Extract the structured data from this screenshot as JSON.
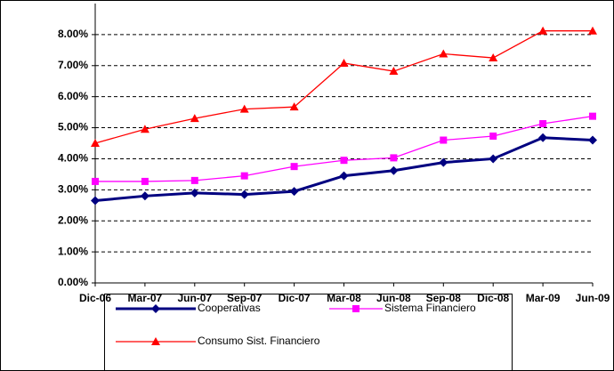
{
  "chart_data": {
    "type": "line",
    "categories": [
      "Dic-06",
      "Mar-07",
      "Jun-07",
      "Sep-07",
      "Dic-07",
      "Mar-08",
      "Jun-08",
      "Sep-08",
      "Dic-08",
      "Mar-09",
      "Jun-09"
    ],
    "series": [
      {
        "name": "Cooperativas",
        "color": "#000080",
        "marker": "diamond",
        "values": [
          2.65,
          2.8,
          2.9,
          2.85,
          2.95,
          3.45,
          3.62,
          3.88,
          4.0,
          4.68,
          4.6
        ]
      },
      {
        "name": "Sistema Financiero",
        "color": "#ff00ff",
        "marker": "square",
        "values": [
          3.27,
          3.27,
          3.3,
          3.45,
          3.75,
          3.95,
          4.03,
          4.6,
          4.73,
          5.13,
          5.37
        ]
      },
      {
        "name": "Consumo Sist. Financiero",
        "color": "#ff0000",
        "marker": "triangle",
        "values": [
          4.5,
          4.95,
          5.3,
          5.6,
          5.67,
          7.08,
          6.82,
          7.38,
          7.25,
          8.12,
          8.12
        ]
      }
    ],
    "ylim": [
      0,
      9
    ],
    "yticks": [
      {
        "value": 0,
        "label": "0.00%"
      },
      {
        "value": 1,
        "label": "1.00%"
      },
      {
        "value": 2,
        "label": "2.00%"
      },
      {
        "value": 3,
        "label": "3.00%"
      },
      {
        "value": 4,
        "label": "4.00%"
      },
      {
        "value": 5,
        "label": "5.00%"
      },
      {
        "value": 6,
        "label": "6.00%"
      },
      {
        "value": 7,
        "label": "7.00%"
      },
      {
        "value": 8,
        "label": "8.00%"
      }
    ],
    "grid": true
  }
}
